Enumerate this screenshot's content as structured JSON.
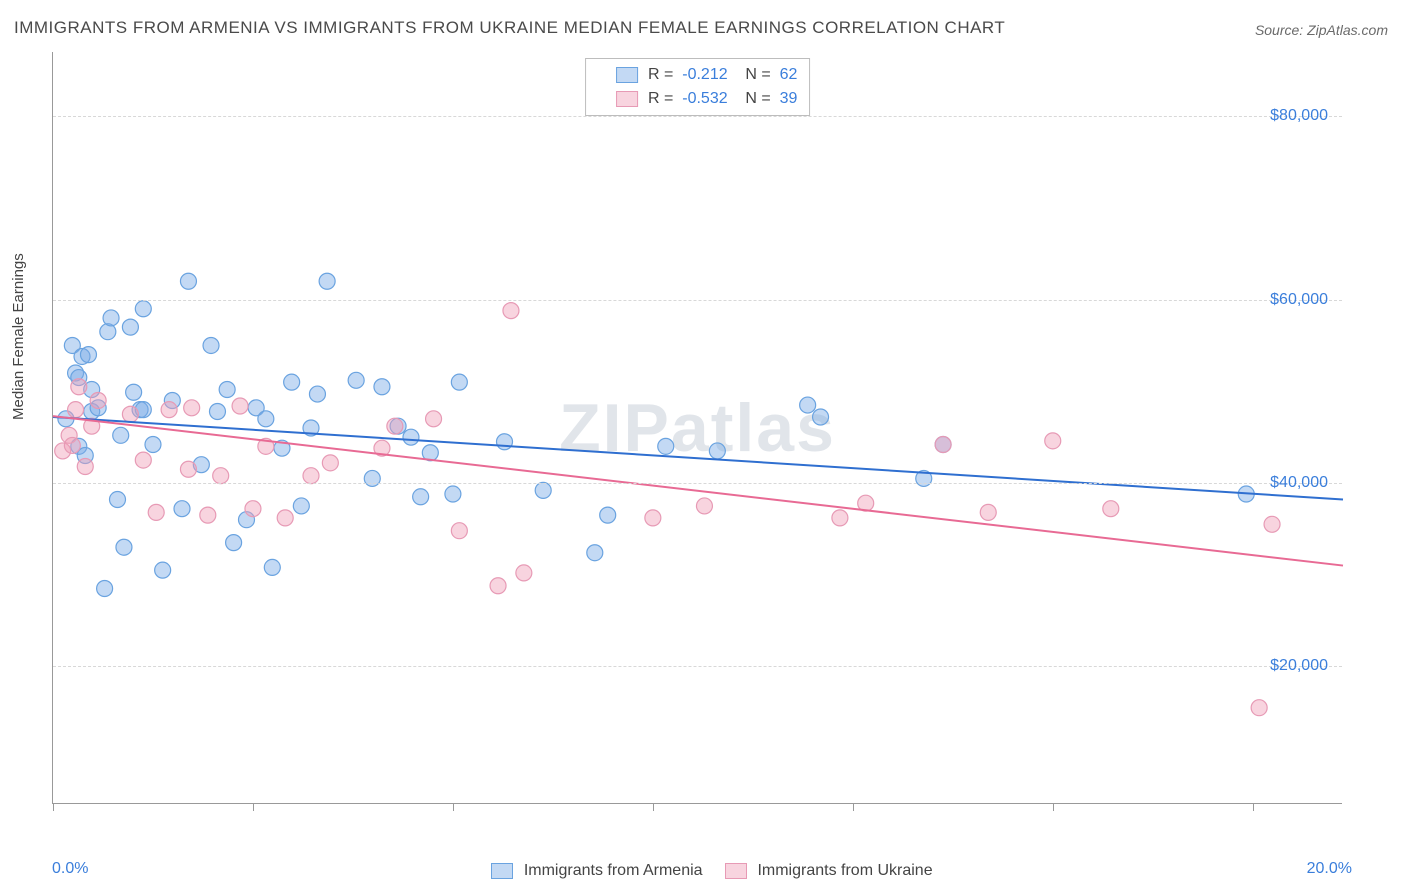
{
  "title": "IMMIGRANTS FROM ARMENIA VS IMMIGRANTS FROM UKRAINE MEDIAN FEMALE EARNINGS CORRELATION CHART",
  "source": "Source: ZipAtlas.com",
  "watermark": "ZIPatlas",
  "ylabel": "Median Female Earnings",
  "chart": {
    "type": "scatter",
    "xlim": [
      0,
      20
    ],
    "ylim": [
      5000,
      87000
    ],
    "x_tick_positions": [
      0,
      3.1,
      6.2,
      9.3,
      12.4,
      15.5,
      18.6
    ],
    "y_gridlines": [
      20000,
      40000,
      60000,
      80000
    ],
    "y_tick_labels": [
      "$20,000",
      "$40,000",
      "$60,000",
      "$80,000"
    ],
    "x_left_label": "0.0%",
    "x_right_label": "20.0%",
    "background_color": "#ffffff",
    "grid_color": "#d8d8d8",
    "axis_color": "#999999",
    "marker_radius": 8,
    "marker_opacity": 0.5,
    "line_width": 2
  },
  "series": [
    {
      "name": "Immigrants from Armenia",
      "color_fill": "rgba(122,170,230,0.45)",
      "color_stroke": "#6aa3e0",
      "line_color": "#2f6fd0",
      "R": "-0.212",
      "N": "62",
      "regression": {
        "x1": 0,
        "y1": 47200,
        "x2": 20,
        "y2": 38200
      },
      "points": [
        [
          0.2,
          47000
        ],
        [
          0.3,
          55000
        ],
        [
          0.35,
          52000
        ],
        [
          0.4,
          44000
        ],
        [
          0.4,
          51500
        ],
        [
          0.45,
          53800
        ],
        [
          0.5,
          43000
        ],
        [
          0.55,
          54000
        ],
        [
          0.6,
          47800
        ],
        [
          0.6,
          50200
        ],
        [
          0.7,
          48200
        ],
        [
          0.8,
          28500
        ],
        [
          0.85,
          56500
        ],
        [
          0.9,
          58000
        ],
        [
          1.0,
          38200
        ],
        [
          1.05,
          45200
        ],
        [
          1.1,
          33000
        ],
        [
          1.2,
          57000
        ],
        [
          1.25,
          49900
        ],
        [
          1.35,
          48000
        ],
        [
          1.4,
          48000
        ],
        [
          1.4,
          59000
        ],
        [
          1.55,
          44200
        ],
        [
          1.7,
          30500
        ],
        [
          1.85,
          49000
        ],
        [
          2.0,
          37200
        ],
        [
          2.1,
          62000
        ],
        [
          2.3,
          42000
        ],
        [
          2.45,
          55000
        ],
        [
          2.55,
          47800
        ],
        [
          2.7,
          50200
        ],
        [
          2.8,
          33500
        ],
        [
          3.0,
          36000
        ],
        [
          3.15,
          48200
        ],
        [
          3.3,
          47000
        ],
        [
          3.4,
          30800
        ],
        [
          3.55,
          43800
        ],
        [
          3.7,
          51000
        ],
        [
          3.85,
          37500
        ],
        [
          4.0,
          46000
        ],
        [
          4.1,
          49700
        ],
        [
          4.25,
          62000
        ],
        [
          4.7,
          51200
        ],
        [
          4.95,
          40500
        ],
        [
          5.1,
          50500
        ],
        [
          5.35,
          46200
        ],
        [
          5.55,
          45000
        ],
        [
          5.7,
          38500
        ],
        [
          5.85,
          43300
        ],
        [
          6.2,
          38800
        ],
        [
          6.3,
          51000
        ],
        [
          7.0,
          44500
        ],
        [
          7.6,
          39200
        ],
        [
          8.4,
          32400
        ],
        [
          8.6,
          36500
        ],
        [
          9.5,
          44000
        ],
        [
          10.3,
          43500
        ],
        [
          11.7,
          48500
        ],
        [
          11.9,
          47200
        ],
        [
          13.5,
          40500
        ],
        [
          13.8,
          44200
        ],
        [
          18.5,
          38800
        ]
      ]
    },
    {
      "name": "Immigrants from Ukraine",
      "color_fill": "rgba(240,160,185,0.45)",
      "color_stroke": "#e79ab5",
      "line_color": "#e86a94",
      "R": "-0.532",
      "N": "39",
      "regression": {
        "x1": 0,
        "y1": 47300,
        "x2": 20,
        "y2": 31000
      },
      "points": [
        [
          0.15,
          43500
        ],
        [
          0.25,
          45200
        ],
        [
          0.3,
          44100
        ],
        [
          0.35,
          48000
        ],
        [
          0.4,
          50500
        ],
        [
          0.5,
          41800
        ],
        [
          0.6,
          46200
        ],
        [
          0.7,
          49000
        ],
        [
          1.2,
          47500
        ],
        [
          1.4,
          42500
        ],
        [
          1.6,
          36800
        ],
        [
          1.8,
          48000
        ],
        [
          2.1,
          41500
        ],
        [
          2.15,
          48200
        ],
        [
          2.4,
          36500
        ],
        [
          2.6,
          40800
        ],
        [
          2.9,
          48400
        ],
        [
          3.1,
          37200
        ],
        [
          3.3,
          44000
        ],
        [
          3.6,
          36200
        ],
        [
          4.0,
          40800
        ],
        [
          4.3,
          42200
        ],
        [
          5.1,
          43800
        ],
        [
          5.3,
          46200
        ],
        [
          5.9,
          47000
        ],
        [
          6.3,
          34800
        ],
        [
          6.9,
          28800
        ],
        [
          7.1,
          58800
        ],
        [
          7.3,
          30200
        ],
        [
          9.3,
          36200
        ],
        [
          10.1,
          37500
        ],
        [
          12.2,
          36200
        ],
        [
          12.6,
          37800
        ],
        [
          13.8,
          44200
        ],
        [
          14.5,
          36800
        ],
        [
          15.5,
          44600
        ],
        [
          16.4,
          37200
        ],
        [
          18.7,
          15500
        ],
        [
          18.9,
          35500
        ]
      ]
    }
  ],
  "bottom_legend": {
    "items": [
      "Immigrants from Armenia",
      "Immigrants from Ukraine"
    ]
  },
  "top_legend": {
    "r_label": "R =",
    "n_label": "N ="
  }
}
